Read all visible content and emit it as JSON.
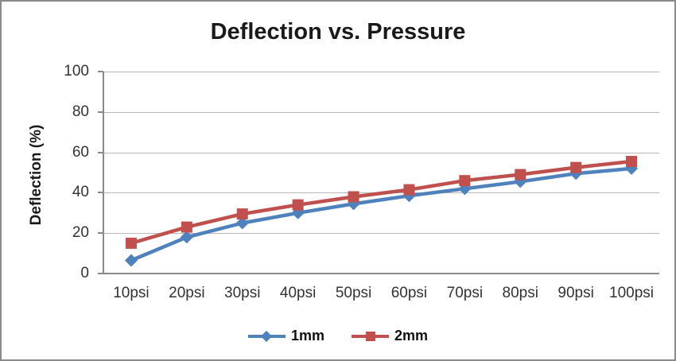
{
  "chart_data": {
    "type": "line",
    "title": "Deflection vs. Pressure",
    "xlabel": "",
    "ylabel": "Deflection (%)",
    "categories": [
      "10psi",
      "20psi",
      "30psi",
      "40psi",
      "50psi",
      "60psi",
      "70psi",
      "80psi",
      "90psi",
      "100psi"
    ],
    "series": [
      {
        "name": "1mm",
        "marker": "diamond",
        "color": "#4F81BD",
        "values": [
          6.5,
          18,
          25,
          30,
          34.5,
          38.5,
          42,
          45.5,
          49.5,
          52
        ]
      },
      {
        "name": "2mm",
        "marker": "square",
        "color": "#C0504D",
        "values": [
          15,
          23,
          29.5,
          34,
          38,
          41.5,
          46,
          49,
          52.5,
          55.5
        ]
      }
    ],
    "ylim": [
      0,
      100
    ],
    "yticks": [
      0,
      20,
      40,
      60,
      80,
      100
    ],
    "grid": "horizontal-major",
    "legend_position": "bottom"
  },
  "colors": {
    "background": "#FFFFFF",
    "frame_border": "#8A8A8A",
    "axis_line": "#8A8A8A",
    "gridline": "#B8B8B8",
    "tick_label": "#333333",
    "title_text": "#1A1A1A",
    "series_1mm": "#4F81BD",
    "series_2mm": "#C0504D"
  }
}
